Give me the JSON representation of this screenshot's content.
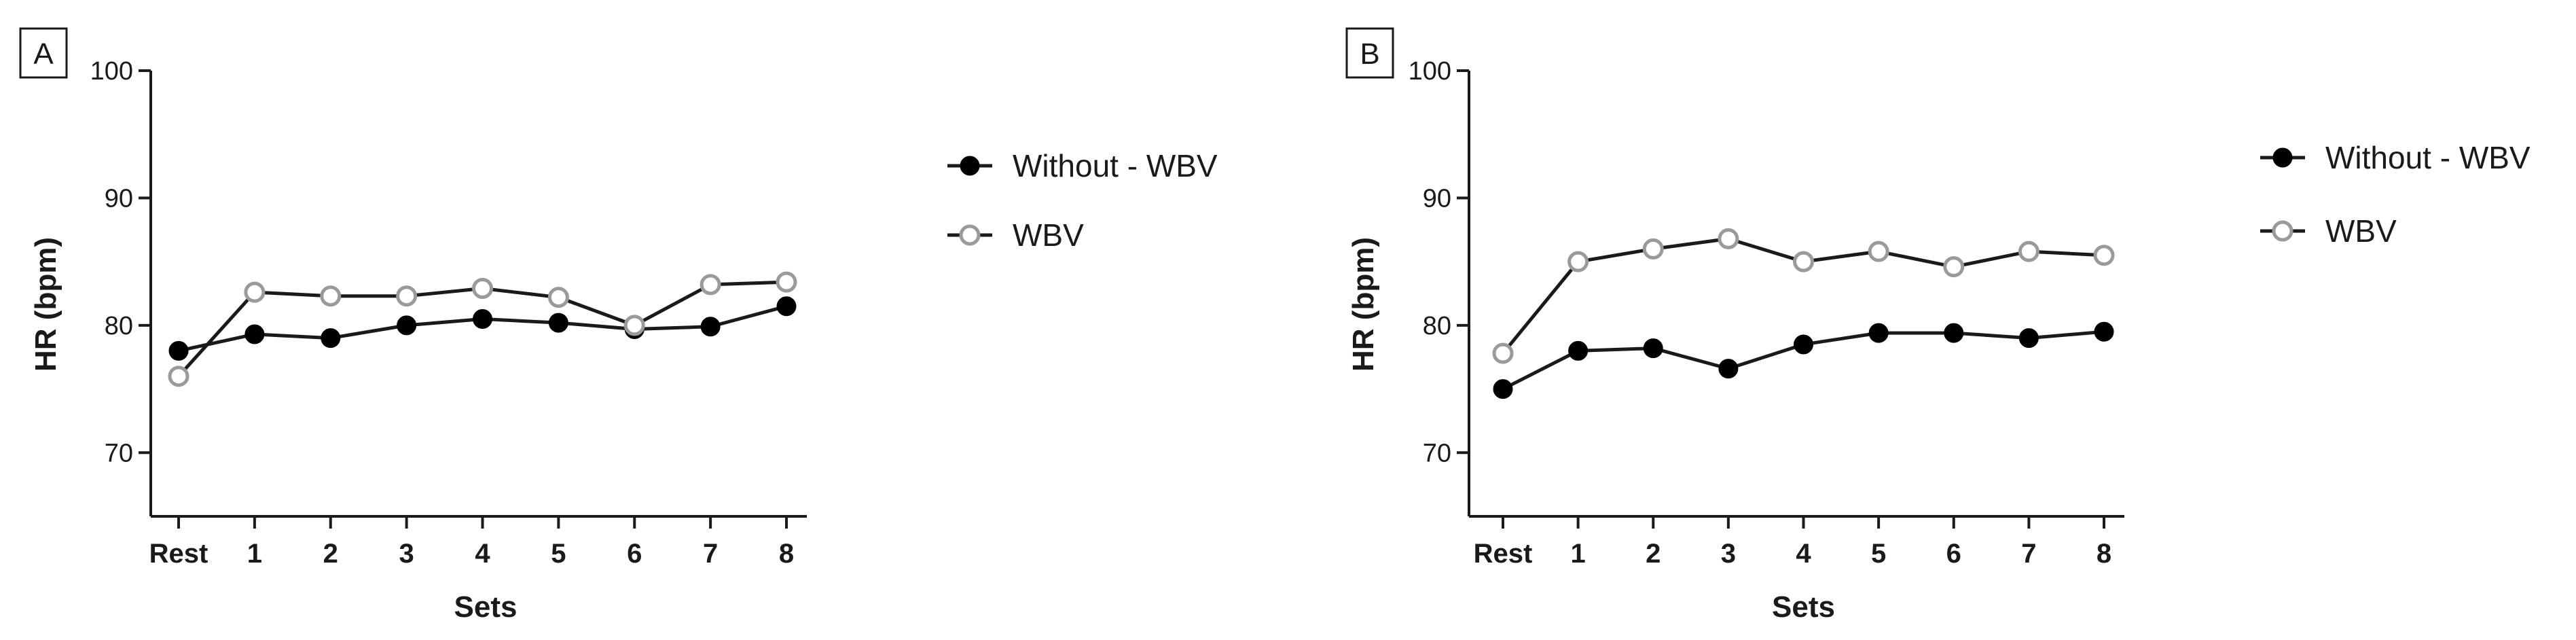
{
  "colors": {
    "without": "#000000",
    "wbv": "#9a9a9a",
    "axis": "#1a1a1a"
  },
  "chart_data": [
    {
      "type": "line",
      "panel_label": "A",
      "categories": [
        "Rest",
        "1",
        "2",
        "3",
        "4",
        "5",
        "6",
        "7",
        "8"
      ],
      "xlabel": "Sets",
      "ylabel": "HR  (bpm)",
      "ylim": [
        65,
        100
      ],
      "yticks": [
        70,
        80,
        90,
        100
      ],
      "grid": false,
      "legend_position": "right",
      "series": [
        {
          "name": "Without - WBV",
          "marker": "filled-circle",
          "values": [
            78.0,
            79.3,
            79.0,
            80.0,
            80.5,
            80.2,
            79.7,
            79.9,
            81.5
          ]
        },
        {
          "name": "WBV",
          "marker": "open-circle",
          "values": [
            76.0,
            82.6,
            82.3,
            82.3,
            82.9,
            82.2,
            80.0,
            83.2,
            83.4
          ]
        }
      ]
    },
    {
      "type": "line",
      "panel_label": "B",
      "categories": [
        "Rest",
        "1",
        "2",
        "3",
        "4",
        "5",
        "6",
        "7",
        "8"
      ],
      "xlabel": "Sets",
      "ylabel": "HR  (bpm)",
      "ylim": [
        65,
        100
      ],
      "yticks": [
        70,
        80,
        90,
        100
      ],
      "grid": false,
      "legend_position": "right",
      "series": [
        {
          "name": "Without - WBV",
          "marker": "filled-circle",
          "values": [
            75.0,
            78.0,
            78.2,
            76.6,
            78.5,
            79.4,
            79.4,
            79.0,
            79.5
          ]
        },
        {
          "name": "WBV",
          "marker": "open-circle",
          "values": [
            77.8,
            85.0,
            86.0,
            86.8,
            85.0,
            85.8,
            84.6,
            85.8,
            85.5
          ]
        }
      ]
    }
  ]
}
